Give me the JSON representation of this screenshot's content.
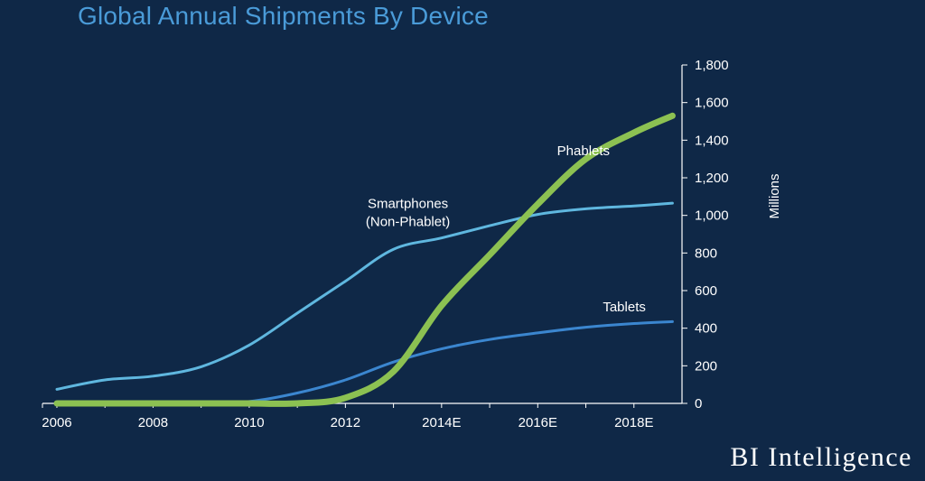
{
  "chart_data": {
    "type": "line",
    "title": "Global Annual Shipments By Device",
    "ylabel": "Millions",
    "xlabel": "",
    "ylim": [
      0,
      1800
    ],
    "xlim": [
      2005.7,
      2019.0
    ],
    "x_ticks": [
      {
        "x": 2006,
        "label": "2006"
      },
      {
        "x": 2008,
        "label": "2008"
      },
      {
        "x": 2010,
        "label": "2010"
      },
      {
        "x": 2012,
        "label": "2012"
      },
      {
        "x": 2014,
        "label": "2014E"
      },
      {
        "x": 2016,
        "label": "2016E"
      },
      {
        "x": 2018,
        "label": "2018E"
      }
    ],
    "y_ticks": [
      {
        "y": 0,
        "label": "0"
      },
      {
        "y": 200,
        "label": "200"
      },
      {
        "y": 400,
        "label": "400"
      },
      {
        "y": 600,
        "label": "600"
      },
      {
        "y": 800,
        "label": "800"
      },
      {
        "y": 1000,
        "label": "1,000"
      },
      {
        "y": 1200,
        "label": "1,200"
      },
      {
        "y": 1400,
        "label": "1,400"
      },
      {
        "y": 1600,
        "label": "1,600"
      },
      {
        "y": 1800,
        "label": "1,800"
      }
    ],
    "grid": false,
    "series": [
      {
        "name": "Smartphones (Non-Phablet)",
        "label_lines": [
          "Smartphones",
          "(Non-Phablet)"
        ],
        "label_at": {
          "x": 2013.3,
          "y": 1040
        },
        "color": "#5fb7df",
        "x": [
          2006,
          2007,
          2008,
          2009,
          2010,
          2011,
          2012,
          2013,
          2014,
          2015,
          2016,
          2017,
          2018,
          2018.8
        ],
        "y": [
          75,
          125,
          145,
          195,
          310,
          480,
          650,
          820,
          880,
          945,
          1005,
          1035,
          1050,
          1065
        ]
      },
      {
        "name": "Tablets",
        "label_lines": [
          "Tablets"
        ],
        "label_at": {
          "x": 2017.8,
          "y": 490
        },
        "color": "#3b86cf",
        "x": [
          2006,
          2007,
          2008,
          2009,
          2010,
          2011,
          2012,
          2013,
          2014,
          2015,
          2016,
          2017,
          2018,
          2018.8
        ],
        "y": [
          0,
          0,
          0,
          0,
          10,
          55,
          125,
          220,
          290,
          340,
          375,
          405,
          425,
          435
        ]
      },
      {
        "name": "Phablets",
        "label_lines": [
          "Phablets"
        ],
        "label_at": {
          "x": 2016.95,
          "y": 1320
        },
        "color": "#8cc152",
        "x": [
          2006,
          2007,
          2008,
          2009,
          2010,
          2011,
          2012,
          2013,
          2014,
          2015,
          2016,
          2017,
          2018,
          2018.8
        ],
        "y": [
          0,
          0,
          0,
          0,
          0,
          0,
          30,
          170,
          520,
          790,
          1060,
          1300,
          1440,
          1530
        ]
      }
    ]
  },
  "brand": "BI Intelligence"
}
